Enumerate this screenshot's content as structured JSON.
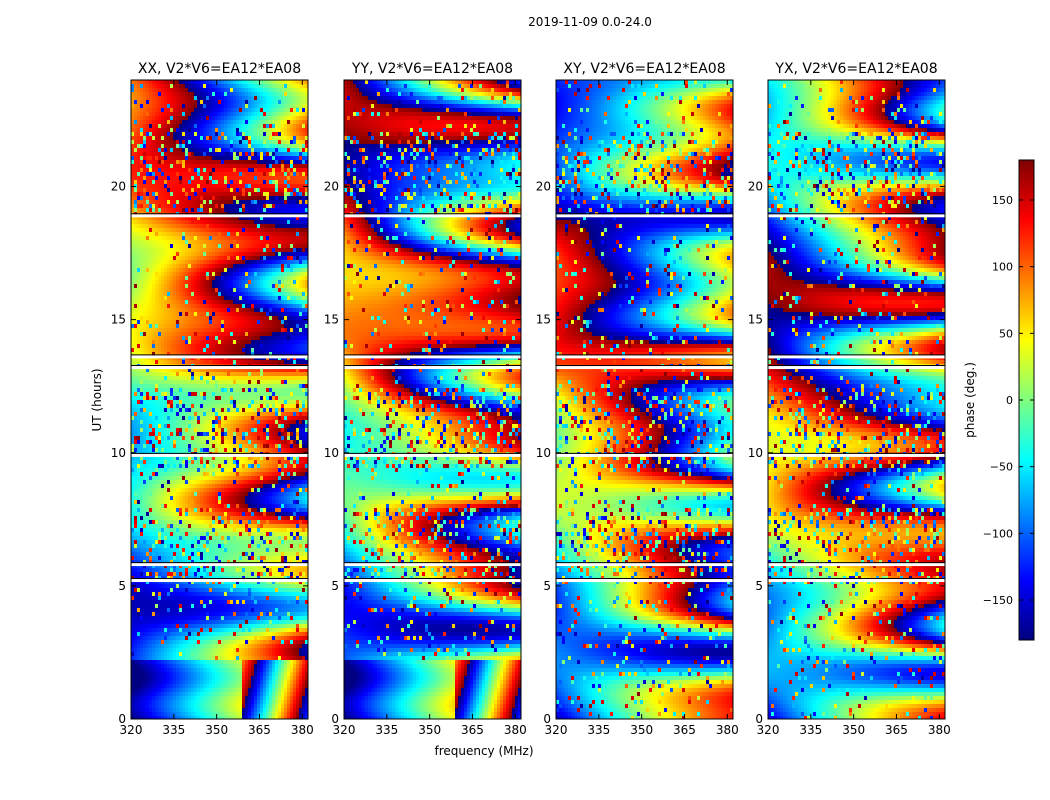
{
  "chart_data": {
    "type": "heatmap",
    "suptitle": "2019-11-09 0.0-24.0",
    "xlabel": "frequency (MHz)",
    "ylabel": "UT (hours)",
    "xlim": [
      320,
      382
    ],
    "ylim": [
      0,
      24
    ],
    "xticks": [
      320,
      335,
      350,
      365,
      380
    ],
    "yticks": [
      0,
      5,
      10,
      15,
      20
    ],
    "panels": [
      {
        "title": "XX, V2*V6=EA12*EA08",
        "polarization": "XX"
      },
      {
        "title": "YY, V2*V6=EA12*EA08",
        "polarization": "YY"
      },
      {
        "title": "XY, V2*V6=EA12*EA08",
        "polarization": "XY"
      },
      {
        "title": "YX, V2*V6=EA12*EA08",
        "polarization": "YX"
      }
    ],
    "colorbar": {
      "label": "phase (deg.)",
      "range": [
        -180,
        180
      ],
      "ticks": [
        -150,
        -100,
        -50,
        0,
        50,
        100,
        150
      ],
      "tick_labels": [
        "−150",
        "−100",
        "−50",
        "0",
        "50",
        "100",
        "150"
      ],
      "colormap": "jet",
      "colors": [
        "#00007f",
        "#0000ff",
        "#007fff",
        "#00ffff",
        "#7fff7f",
        "#ffff00",
        "#ff7f00",
        "#ff0000",
        "#7f0000"
      ]
    },
    "data_gaps_ut_hours": [
      5.2,
      5.8,
      9.9,
      13.2,
      13.6,
      18.9
    ]
  }
}
